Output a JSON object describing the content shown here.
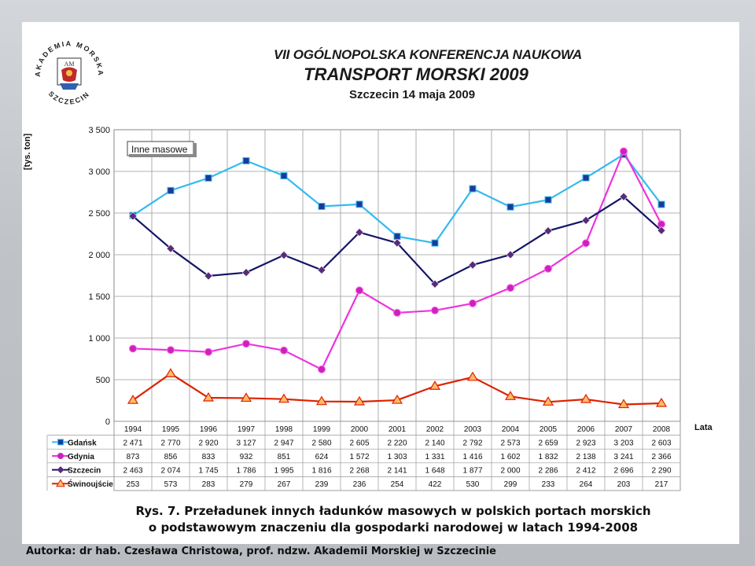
{
  "header": {
    "line1": "VII OGÓLNOPOLSKA KONFERENCJA NAUKOWA",
    "line2": "TRANSPORT MORSKI 2009",
    "line3": "Szczecin 14 maja 2009"
  },
  "logo": {
    "name": "akademia-morska-szczecin-seal",
    "text_top": "AKADEMIA MORSKA",
    "text_bottom": "SZCZECIN",
    "monogram": "AM"
  },
  "caption": {
    "line1": "Rys. 7. Przeładunek innych ładunków masowych w polskich portach morskich",
    "line2": "o podstawowym znaczeniu dla gospodarki narodowej w latach 1994-2008"
  },
  "author": "Autorka: dr hab. Czesława Christowa, prof. ndzw. Akademii Morskiej w Szczecinie",
  "chart_data": {
    "type": "line",
    "title": "Inne masowe",
    "ylabel": "[tys. ton]",
    "xlabel": "Lata",
    "ylim": [
      0,
      3500
    ],
    "yticks": [
      0,
      500,
      1000,
      1500,
      2000,
      2500,
      3000,
      3500
    ],
    "ytick_labels": [
      "0",
      "500",
      "1 000",
      "1 500",
      "2 000",
      "2 500",
      "3 000",
      "3 500"
    ],
    "grid": true,
    "categories": [
      "1994",
      "1995",
      "1996",
      "1997",
      "1998",
      "1999",
      "2000",
      "2001",
      "2002",
      "2003",
      "2004",
      "2005",
      "2006",
      "2007",
      "2008"
    ],
    "series": [
      {
        "name": "Gdańsk",
        "color": "#33bbee",
        "marker": "square",
        "marker_color": "#1a3a9a",
        "values": [
          2471,
          2770,
          2920,
          3127,
          2947,
          2580,
          2605,
          2220,
          2140,
          2792,
          2573,
          2659,
          2923,
          3203,
          2603
        ],
        "labels": [
          "2 471",
          "2 770",
          "2 920",
          "3 127",
          "2 947",
          "2 580",
          "2 605",
          "2 220",
          "2 140",
          "2 792",
          "2 573",
          "2 659",
          "2 923",
          "3 203",
          "2 603"
        ]
      },
      {
        "name": "Gdynia",
        "color": "#ee33dd",
        "marker": "circle",
        "marker_color": "#cc22bb",
        "values": [
          873,
          856,
          833,
          932,
          851,
          624,
          1572,
          1303,
          1331,
          1416,
          1602,
          1832,
          2138,
          3241,
          2366
        ],
        "labels": [
          "873",
          "856",
          "833",
          "932",
          "851",
          "624",
          "1 572",
          "1 303",
          "1 331",
          "1 416",
          "1 602",
          "1 832",
          "2 138",
          "3 241",
          "2 366"
        ]
      },
      {
        "name": "Szczecin",
        "color": "#141466",
        "marker": "diamond",
        "marker_color": "#5a2a7a",
        "values": [
          2463,
          2074,
          1745,
          1786,
          1995,
          1816,
          2268,
          2141,
          1648,
          1877,
          2000,
          2286,
          2412,
          2696,
          2290
        ],
        "labels": [
          "2 463",
          "2 074",
          "1 745",
          "1 786",
          "1 995",
          "1 816",
          "2 268",
          "2 141",
          "1 648",
          "1 877",
          "2 000",
          "2 286",
          "2 412",
          "2 696",
          "2 290"
        ]
      },
      {
        "name": "Świnoujście",
        "color": "#dd2200",
        "marker": "triangle",
        "marker_color": "#ffbb66",
        "values": [
          253,
          573,
          283,
          279,
          267,
          239,
          236,
          254,
          422,
          530,
          299,
          233,
          264,
          203,
          217
        ],
        "labels": [
          "253",
          "573",
          "283",
          "279",
          "267",
          "239",
          "236",
          "254",
          "422",
          "530",
          "299",
          "233",
          "264",
          "203",
          "217"
        ]
      }
    ]
  }
}
